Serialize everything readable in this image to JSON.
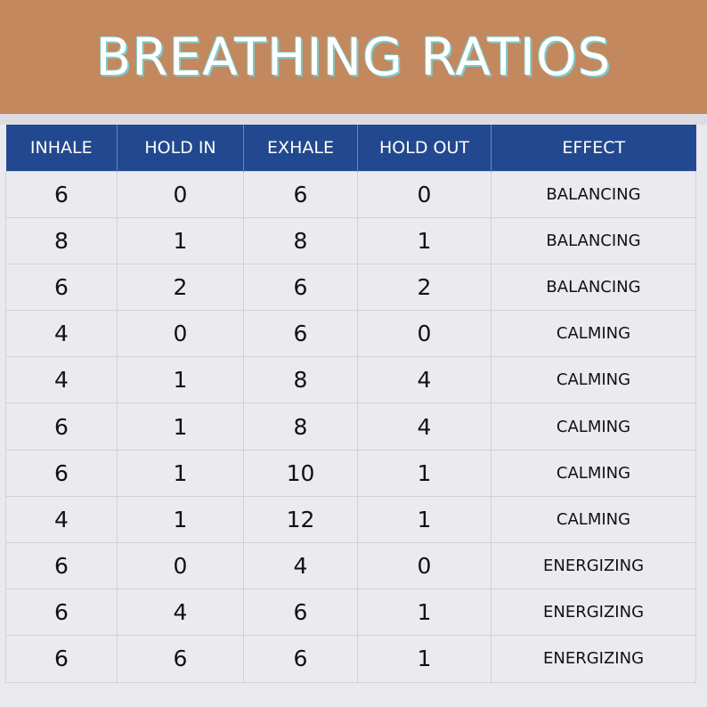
{
  "title": "BREATHING RATIOS",
  "colors": {
    "banner": "#c4885f",
    "header": "#22498f",
    "title_outline": "#7fc9c4",
    "row_bg": "#ebebef"
  },
  "table": {
    "headers": [
      "INHALE",
      "HOLD IN",
      "EXHALE",
      "HOLD OUT",
      "EFFECT"
    ],
    "rows": [
      [
        "6",
        "0",
        "6",
        "0",
        "BALANCING"
      ],
      [
        "8",
        "1",
        "8",
        "1",
        "BALANCING"
      ],
      [
        "6",
        "2",
        "6",
        "2",
        "BALANCING"
      ],
      [
        "4",
        "0",
        "6",
        "0",
        "CALMING"
      ],
      [
        "4",
        "1",
        "8",
        "4",
        "CALMING"
      ],
      [
        "6",
        "1",
        "8",
        "4",
        "CALMING"
      ],
      [
        "6",
        "1",
        "10",
        "1",
        "CALMING"
      ],
      [
        "4",
        "1",
        "12",
        "1",
        "CALMING"
      ],
      [
        "6",
        "0",
        "4",
        "0",
        "ENERGIZING"
      ],
      [
        "6",
        "4",
        "6",
        "1",
        "ENERGIZING"
      ],
      [
        "6",
        "6",
        "6",
        "1",
        "ENERGIZING"
      ]
    ]
  }
}
